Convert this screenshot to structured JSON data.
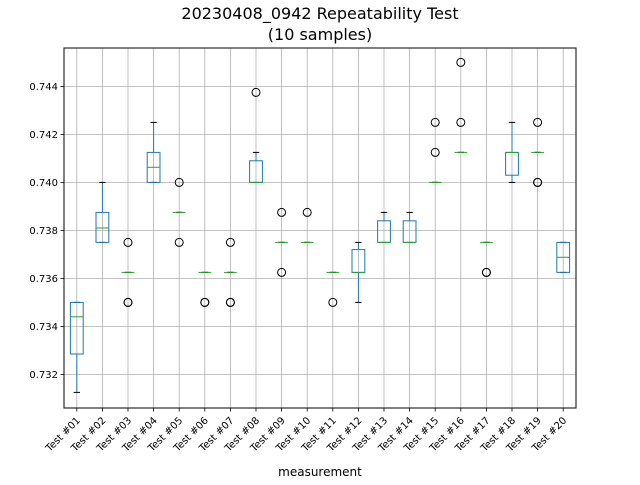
{
  "chart_data": {
    "type": "box",
    "title": "20230408_0942 Repeatability Test",
    "subtitle": "(10 samples)",
    "xlabel": "measurement",
    "ylabel": "",
    "ylim": [
      0.7306,
      0.7456
    ],
    "yticks": [
      0.732,
      0.734,
      0.736,
      0.738,
      0.74,
      0.742,
      0.744
    ],
    "ytick_labels": [
      "0.732",
      "0.734",
      "0.736",
      "0.738",
      "0.740",
      "0.742",
      "0.744"
    ],
    "grid": true,
    "categories": [
      "Test #01",
      "Test #02",
      "Test #03",
      "Test #04",
      "Test #05",
      "Test #06",
      "Test #07",
      "Test #08",
      "Test #09",
      "Test #10",
      "Test #11",
      "Test #12",
      "Test #13",
      "Test #14",
      "Test #15",
      "Test #16",
      "Test #17",
      "Test #18",
      "Test #19",
      "Test #20"
    ],
    "boxes": [
      {
        "whislo": 0.73125,
        "q1": 0.73285,
        "med": 0.7344,
        "q3": 0.735,
        "whishi": 0.735,
        "fliers": []
      },
      {
        "whislo": 0.7375,
        "q1": 0.7375,
        "med": 0.7381,
        "q3": 0.73875,
        "whishi": 0.74,
        "fliers": []
      },
      {
        "whislo": 0.73625,
        "q1": 0.73625,
        "med": 0.73625,
        "q3": 0.73625,
        "whishi": 0.73625,
        "fliers": [
          0.7375,
          0.735,
          0.735
        ]
      },
      {
        "whislo": 0.74,
        "q1": 0.74,
        "med": 0.74063,
        "q3": 0.74125,
        "whishi": 0.7425,
        "fliers": []
      },
      {
        "whislo": 0.73875,
        "q1": 0.73875,
        "med": 0.73875,
        "q3": 0.73875,
        "whishi": 0.73875,
        "fliers": [
          0.74,
          0.7375
        ]
      },
      {
        "whislo": 0.73625,
        "q1": 0.73625,
        "med": 0.73625,
        "q3": 0.73625,
        "whishi": 0.73625,
        "fliers": [
          0.735,
          0.735
        ]
      },
      {
        "whislo": 0.73625,
        "q1": 0.73625,
        "med": 0.73625,
        "q3": 0.73625,
        "whishi": 0.73625,
        "fliers": [
          0.7375,
          0.735,
          0.735
        ]
      },
      {
        "whislo": 0.74,
        "q1": 0.74,
        "med": 0.74,
        "q3": 0.7409,
        "whishi": 0.74125,
        "fliers": [
          0.74375
        ]
      },
      {
        "whislo": 0.7375,
        "q1": 0.7375,
        "med": 0.7375,
        "q3": 0.7375,
        "whishi": 0.7375,
        "fliers": [
          0.73875,
          0.73625
        ]
      },
      {
        "whislo": 0.7375,
        "q1": 0.7375,
        "med": 0.7375,
        "q3": 0.7375,
        "whishi": 0.7375,
        "fliers": [
          0.73875
        ]
      },
      {
        "whislo": 0.73625,
        "q1": 0.73625,
        "med": 0.73625,
        "q3": 0.73625,
        "whishi": 0.73625,
        "fliers": [
          0.735
        ]
      },
      {
        "whislo": 0.735,
        "q1": 0.73625,
        "med": 0.73625,
        "q3": 0.7372,
        "whishi": 0.7375,
        "fliers": []
      },
      {
        "whislo": 0.7375,
        "q1": 0.7375,
        "med": 0.7375,
        "q3": 0.7384,
        "whishi": 0.73875,
        "fliers": []
      },
      {
        "whislo": 0.7375,
        "q1": 0.7375,
        "med": 0.7375,
        "q3": 0.7384,
        "whishi": 0.73875,
        "fliers": []
      },
      {
        "whislo": 0.74,
        "q1": 0.74,
        "med": 0.74,
        "q3": 0.74,
        "whishi": 0.74,
        "fliers": [
          0.7425,
          0.74125
        ]
      },
      {
        "whislo": 0.74125,
        "q1": 0.74125,
        "med": 0.74125,
        "q3": 0.74125,
        "whishi": 0.74125,
        "fliers": [
          0.745,
          0.7425
        ]
      },
      {
        "whislo": 0.7375,
        "q1": 0.7375,
        "med": 0.7375,
        "q3": 0.7375,
        "whishi": 0.7375,
        "fliers": [
          0.73625,
          0.73625
        ]
      },
      {
        "whislo": 0.74,
        "q1": 0.7403,
        "med": 0.74125,
        "q3": 0.74125,
        "whishi": 0.7425,
        "fliers": []
      },
      {
        "whislo": 0.74125,
        "q1": 0.74125,
        "med": 0.74125,
        "q3": 0.74125,
        "whishi": 0.74125,
        "fliers": [
          0.7425,
          0.74,
          0.74
        ]
      },
      {
        "whislo": 0.73625,
        "q1": 0.73625,
        "med": 0.73688,
        "q3": 0.7375,
        "whishi": 0.7375,
        "fliers": []
      }
    ],
    "colors": {
      "box": "#1f77b4",
      "median": "#2ca02c",
      "whisker": "#1f77b4",
      "cap": "#000000",
      "flier": "#000000",
      "grid": "#b0b0b0",
      "axes": "#000000"
    }
  }
}
